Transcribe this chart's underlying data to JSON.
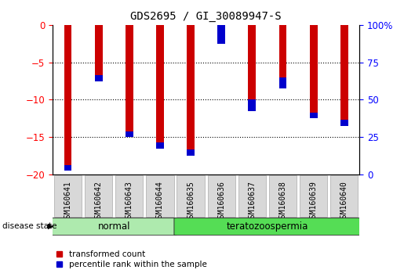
{
  "title": "GDS2695 / GI_30089947-S",
  "samples": [
    "GSM160641",
    "GSM160642",
    "GSM160643",
    "GSM160644",
    "GSM160635",
    "GSM160636",
    "GSM160637",
    "GSM160638",
    "GSM160639",
    "GSM160640"
  ],
  "red_tops": [
    0,
    0,
    0,
    0,
    0,
    0,
    0,
    0,
    0,
    0
  ],
  "red_bottoms": [
    -19.5,
    -7.5,
    -15.0,
    -16.5,
    -17.5,
    -2.5,
    -11.5,
    -8.5,
    -12.5,
    -13.5
  ],
  "blue_heights": [
    0.8,
    0.8,
    0.8,
    0.8,
    0.8,
    3.5,
    1.5,
    1.5,
    0.8,
    0.8
  ],
  "ylim_left": [
    -20,
    0
  ],
  "ylim_right": [
    0,
    100
  ],
  "y_ticks_left": [
    0,
    -5,
    -10,
    -15,
    -20
  ],
  "y_ticks_right": [
    0,
    25,
    50,
    75,
    100
  ],
  "groups": [
    {
      "label": "normal",
      "start": 0,
      "end": 3,
      "color": "#90EE90"
    },
    {
      "label": "teratozoospermia",
      "start": 4,
      "end": 9,
      "color": "#44CC44"
    }
  ],
  "disease_state_label": "disease state",
  "bar_color_red": "#CC0000",
  "bar_color_blue": "#0000CC",
  "plot_bg": "#ffffff",
  "legend_red": "transformed count",
  "legend_blue": "percentile rank within the sample",
  "bar_width": 0.25,
  "grid_lines": [
    -5,
    -10,
    -15
  ]
}
